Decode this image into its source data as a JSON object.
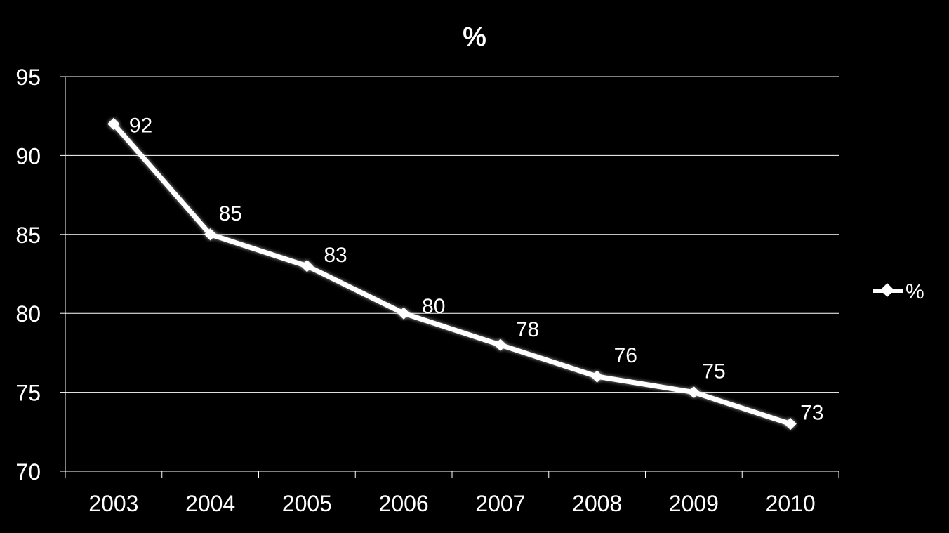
{
  "chart_data": {
    "type": "line",
    "title": "%",
    "categories": [
      "2003",
      "2004",
      "2005",
      "2006",
      "2007",
      "2008",
      "2009",
      "2010"
    ],
    "series": [
      {
        "name": "%",
        "values": [
          92,
          85,
          83,
          80,
          78,
          76,
          75,
          73
        ]
      }
    ],
    "data_labels": [
      "92",
      "85",
      "83",
      "80",
      "78",
      "76",
      "75",
      "73"
    ],
    "y_ticks": [
      "70",
      "75",
      "80",
      "85",
      "90",
      "95"
    ],
    "ylim": [
      70,
      95
    ],
    "grid": true,
    "legend": "right",
    "colors": {
      "background": "#000000",
      "line": "#ffffff",
      "grid": "#ffffff",
      "text": "#ffffff"
    }
  }
}
